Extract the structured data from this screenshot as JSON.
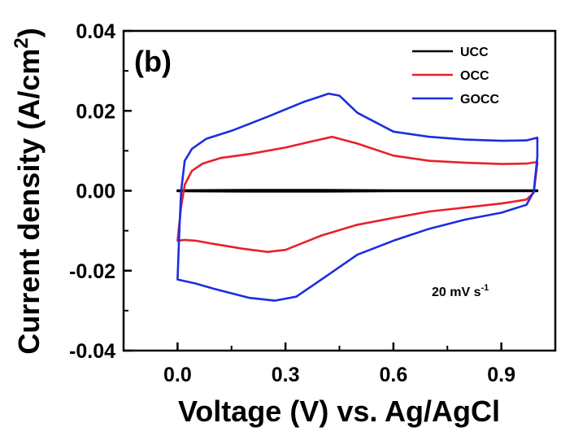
{
  "chart_data": {
    "type": "line",
    "panel_label": "(b)",
    "xlabel": "Voltage (V) vs. Ag/AgCl",
    "ylabel": "Current density (A/cm",
    "ylabel_sup": "2",
    "ylabel_close": ")",
    "xlim": [
      -0.15,
      1.05
    ],
    "ylim": [
      -0.04,
      0.04
    ],
    "x_ticks": [
      0.0,
      0.3,
      0.6,
      0.9
    ],
    "x_tick_labels": [
      "0.0",
      "0.3",
      "0.6",
      "0.9"
    ],
    "y_ticks": [
      -0.04,
      -0.02,
      0.0,
      0.02,
      0.04
    ],
    "y_tick_labels": [
      "-0.04",
      "-0.02",
      "0.00",
      "0.02",
      "0.04"
    ],
    "legend_position": "top-right",
    "annotation": {
      "text": "20 mV s",
      "sup": "-1"
    },
    "series": [
      {
        "name": "UCC",
        "color": "#000000",
        "x": [
          0.0,
          0.2,
          0.4,
          0.6,
          0.8,
          1.0,
          1.0,
          0.8,
          0.6,
          0.4,
          0.2,
          0.0
        ],
        "y": [
          0.0001,
          0.0002,
          0.0002,
          0.0001,
          0.0001,
          0.0001,
          -0.0001,
          -0.0001,
          -0.0001,
          -0.0002,
          -0.0002,
          -0.0001
        ]
      },
      {
        "name": "OCC",
        "color": "#e8202a",
        "x": [
          0.0,
          0.01,
          0.02,
          0.04,
          0.07,
          0.12,
          0.2,
          0.3,
          0.38,
          0.43,
          0.5,
          0.6,
          0.7,
          0.8,
          0.9,
          0.97,
          1.0,
          1.0,
          0.99,
          0.97,
          0.9,
          0.8,
          0.7,
          0.6,
          0.5,
          0.4,
          0.3,
          0.25,
          0.18,
          0.1,
          0.05,
          0.02,
          0.0
        ],
        "y": [
          -0.0125,
          -0.004,
          0.0015,
          0.005,
          0.0068,
          0.0082,
          0.0092,
          0.0108,
          0.0125,
          0.0135,
          0.0118,
          0.0088,
          0.0075,
          0.007,
          0.0067,
          0.0068,
          0.0072,
          0.0068,
          -0.0005,
          -0.0022,
          -0.0032,
          -0.0042,
          -0.0052,
          -0.0068,
          -0.0085,
          -0.0112,
          -0.0148,
          -0.0153,
          -0.0145,
          -0.0133,
          -0.0125,
          -0.0123,
          -0.0125
        ]
      },
      {
        "name": "GOCC",
        "color": "#1c2ee0",
        "x": [
          0.0,
          0.005,
          0.01,
          0.02,
          0.04,
          0.08,
          0.15,
          0.25,
          0.35,
          0.42,
          0.45,
          0.5,
          0.6,
          0.7,
          0.8,
          0.9,
          0.97,
          1.0,
          1.0,
          0.99,
          0.97,
          0.9,
          0.8,
          0.7,
          0.6,
          0.5,
          0.4,
          0.33,
          0.27,
          0.2,
          0.1,
          0.05,
          0.0
        ],
        "y": [
          -0.0222,
          -0.01,
          0.0,
          0.0075,
          0.0105,
          0.013,
          0.015,
          0.0185,
          0.0222,
          0.0243,
          0.0238,
          0.0195,
          0.0148,
          0.0135,
          0.0128,
          0.0125,
          0.0126,
          0.0133,
          0.0085,
          -0.0002,
          -0.0035,
          -0.0055,
          -0.0072,
          -0.0095,
          -0.0125,
          -0.016,
          -0.0222,
          -0.0265,
          -0.0275,
          -0.0268,
          -0.0245,
          -0.0232,
          -0.0222
        ]
      }
    ]
  }
}
